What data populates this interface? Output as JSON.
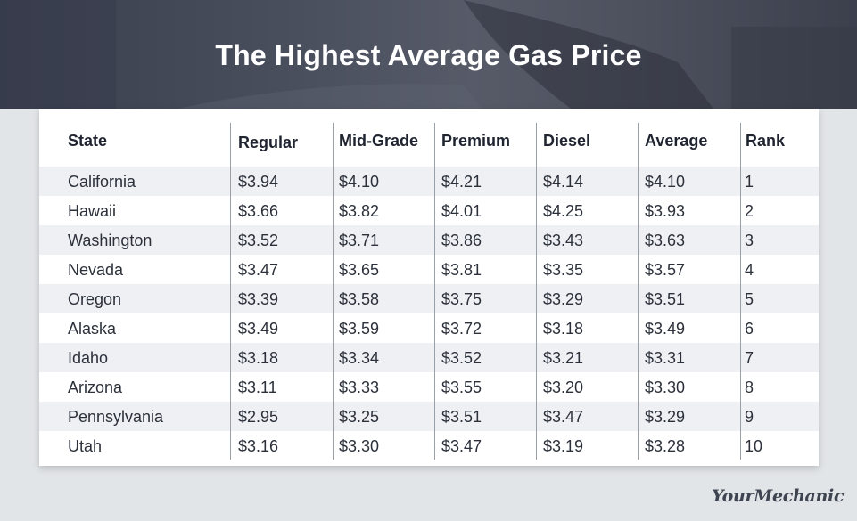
{
  "page": {
    "title": "The Highest Average Gas Price"
  },
  "colors": {
    "banner": "#4a4f5e",
    "background": "#e2e5e8",
    "stripe": "#eef0f3",
    "text": "#2b303a"
  },
  "table": {
    "headers": [
      "State",
      "Regular",
      "Mid-Grade",
      "Premium",
      "Diesel",
      "Average",
      "Rank"
    ],
    "rows": [
      [
        "California",
        "$3.94",
        "$4.10",
        "$4.21",
        "$4.14",
        "$4.10",
        "1"
      ],
      [
        "Hawaii",
        "$3.66",
        "$3.82",
        "$4.01",
        "$4.25",
        "$3.93",
        "2"
      ],
      [
        "Washington",
        "$3.52",
        "$3.71",
        "$3.86",
        "$3.43",
        "$3.63",
        "3"
      ],
      [
        "Nevada",
        "$3.47",
        "$3.65",
        "$3.81",
        "$3.35",
        "$3.57",
        "4"
      ],
      [
        "Oregon",
        "$3.39",
        "$3.58",
        "$3.75",
        "$3.29",
        "$3.51",
        "5"
      ],
      [
        "Alaska",
        "$3.49",
        "$3.59",
        "$3.72",
        "$3.18",
        "$3.49",
        "6"
      ],
      [
        "Idaho",
        "$3.18",
        "$3.34",
        "$3.52",
        "$3.21",
        "$3.31",
        "7"
      ],
      [
        "Arizona",
        "$3.11",
        "$3.33",
        "$3.55",
        "$3.20",
        "$3.30",
        "8"
      ],
      [
        "Pennsylvania",
        "$2.95",
        "$3.25",
        "$3.51",
        "$3.47",
        "$3.29",
        "9"
      ],
      [
        "Utah",
        "$3.16",
        "$3.30",
        "$3.47",
        "$3.19",
        "$3.28",
        "10"
      ]
    ]
  },
  "branding": {
    "logo_text": "YourMechanic"
  }
}
